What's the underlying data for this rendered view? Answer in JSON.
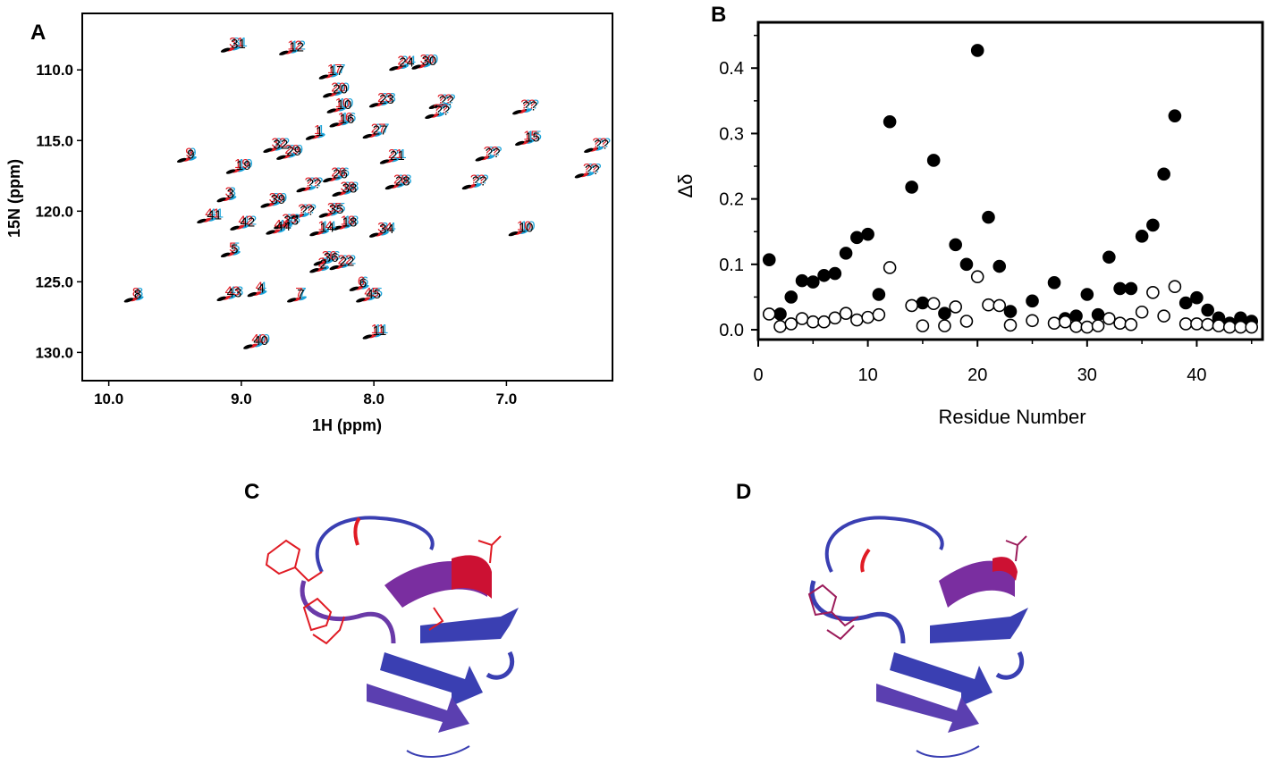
{
  "panels": {
    "A": "A",
    "B": "B",
    "C": "C",
    "D": "D"
  },
  "colors": {
    "free": "#000000",
    "cyan": "#1aa3d9",
    "red": "#e01b24",
    "helix_blue": "#3a3fb2",
    "helix_red": "#cc1133"
  },
  "chart_data": [
    {
      "type": "scatter",
      "panel": "A",
      "xlabel": "1H (ppm)",
      "ylabel": "15N (ppm)",
      "xlim": [
        10.2,
        6.2
      ],
      "ylim": [
        132,
        106
      ],
      "x_reversed": true,
      "y_reversed": true,
      "xticks": [
        "10.0",
        "9.0",
        "8.0",
        "7.0"
      ],
      "xtick_values": [
        10.0,
        9.0,
        8.0,
        7.0
      ],
      "yticks": [
        "110.0",
        "115.0",
        "120.0",
        "125.0",
        "130.0"
      ],
      "ytick_values": [
        110.0,
        115.0,
        120.0,
        125.0,
        130.0
      ],
      "peaks": [
        {
          "label": "31",
          "h": 9.12,
          "n": 108.6
        },
        {
          "label": "12",
          "h": 8.68,
          "n": 108.8
        },
        {
          "label": "24",
          "h": 7.85,
          "n": 109.9
        },
        {
          "label": "30",
          "h": 7.68,
          "n": 109.8
        },
        {
          "label": "17",
          "h": 8.38,
          "n": 110.5
        },
        {
          "label": "20",
          "h": 8.35,
          "n": 111.8
        },
        {
          "label": "23",
          "h": 8.0,
          "n": 112.5
        },
        {
          "label": "??",
          "h": 7.55,
          "n": 112.6
        },
        {
          "label": "??",
          "h": 6.92,
          "n": 113.0
        },
        {
          "label": "10",
          "h": 8.32,
          "n": 112.9
        },
        {
          "label": "16",
          "h": 8.3,
          "n": 113.9
        },
        {
          "label": "??",
          "h": 7.58,
          "n": 113.3
        },
        {
          "label": "1",
          "h": 8.48,
          "n": 114.8
        },
        {
          "label": "27",
          "h": 8.05,
          "n": 114.7
        },
        {
          "label": "15",
          "h": 6.9,
          "n": 115.2
        },
        {
          "label": "32",
          "h": 8.8,
          "n": 115.7
        },
        {
          "label": "29",
          "h": 8.7,
          "n": 116.2
        },
        {
          "label": "9",
          "h": 9.45,
          "n": 116.4
        },
        {
          "label": "21",
          "h": 7.92,
          "n": 116.5
        },
        {
          "label": "??",
          "h": 7.2,
          "n": 116.3
        },
        {
          "label": "??",
          "h": 6.38,
          "n": 115.7
        },
        {
          "label": "19",
          "h": 9.08,
          "n": 117.2
        },
        {
          "label": "??",
          "h": 6.45,
          "n": 117.5
        },
        {
          "label": "26",
          "h": 8.35,
          "n": 117.8
        },
        {
          "label": "28",
          "h": 7.88,
          "n": 118.3
        },
        {
          "label": "??",
          "h": 7.3,
          "n": 118.3
        },
        {
          "label": "??",
          "h": 8.55,
          "n": 118.5
        },
        {
          "label": "38",
          "h": 8.28,
          "n": 118.8
        },
        {
          "label": "3",
          "h": 9.15,
          "n": 119.2
        },
        {
          "label": "39",
          "h": 8.82,
          "n": 119.6
        },
        {
          "label": "41",
          "h": 9.3,
          "n": 120.7
        },
        {
          "label": "??",
          "h": 8.6,
          "n": 120.4
        },
        {
          "label": "35",
          "h": 8.38,
          "n": 120.3
        },
        {
          "label": "42",
          "h": 9.05,
          "n": 121.2
        },
        {
          "label": "33",
          "h": 8.72,
          "n": 121.1
        },
        {
          "label": "44",
          "h": 8.78,
          "n": 121.5
        },
        {
          "label": "18",
          "h": 8.28,
          "n": 121.2
        },
        {
          "label": "34",
          "h": 8.0,
          "n": 121.7
        },
        {
          "label": "14",
          "h": 8.45,
          "n": 121.6
        },
        {
          "label": "10",
          "h": 6.95,
          "n": 121.6
        },
        {
          "label": "5",
          "h": 9.12,
          "n": 123.1
        },
        {
          "label": "36",
          "h": 8.42,
          "n": 123.7
        },
        {
          "label": "22",
          "h": 8.3,
          "n": 124.0
        },
        {
          "label": "2",
          "h": 8.45,
          "n": 124.2
        },
        {
          "label": "6",
          "h": 8.15,
          "n": 125.5
        },
        {
          "label": "4",
          "h": 8.92,
          "n": 125.9
        },
        {
          "label": "43",
          "h": 9.15,
          "n": 126.2
        },
        {
          "label": "7",
          "h": 8.62,
          "n": 126.3
        },
        {
          "label": "45",
          "h": 8.1,
          "n": 126.3
        },
        {
          "label": "8",
          "h": 9.85,
          "n": 126.3
        },
        {
          "label": "11",
          "h": 8.05,
          "n": 128.9
        },
        {
          "label": "40",
          "h": 8.95,
          "n": 129.6
        }
      ]
    },
    {
      "type": "scatter",
      "panel": "B",
      "xlabel": "Residue Number",
      "ylabel": "Δδ",
      "xlim": [
        0,
        46
      ],
      "ylim": [
        -0.015,
        0.47
      ],
      "xticks": [
        "0",
        "10",
        "20",
        "30",
        "40"
      ],
      "xtick_values": [
        0,
        10,
        20,
        30,
        40
      ],
      "yticks": [
        "0.0",
        "0.1",
        "0.2",
        "0.3",
        "0.4"
      ],
      "ytick_values": [
        0.0,
        0.1,
        0.2,
        0.3,
        0.4
      ],
      "series": [
        {
          "marker": "filled",
          "points": [
            [
              1,
              0.107
            ],
            [
              2,
              0.024
            ],
            [
              3,
              0.05
            ],
            [
              4,
              0.075
            ],
            [
              5,
              0.073
            ],
            [
              6,
              0.083
            ],
            [
              7,
              0.086
            ],
            [
              8,
              0.117
            ],
            [
              9,
              0.141
            ],
            [
              10,
              0.146
            ],
            [
              11,
              0.054
            ],
            [
              12,
              0.318
            ],
            [
              14,
              0.218
            ],
            [
              15,
              0.041
            ],
            [
              16,
              0.259
            ],
            [
              17,
              0.025
            ],
            [
              18,
              0.13
            ],
            [
              19,
              0.1
            ],
            [
              20,
              0.427
            ],
            [
              21,
              0.172
            ],
            [
              22,
              0.097
            ],
            [
              23,
              0.028
            ],
            [
              25,
              0.044
            ],
            [
              27,
              0.072
            ],
            [
              28,
              0.017
            ],
            [
              29,
              0.021
            ],
            [
              30,
              0.054
            ],
            [
              31,
              0.023
            ],
            [
              32,
              0.111
            ],
            [
              33,
              0.063
            ],
            [
              34,
              0.063
            ],
            [
              35,
              0.143
            ],
            [
              36,
              0.16
            ],
            [
              37,
              0.238
            ],
            [
              38,
              0.327
            ],
            [
              39,
              0.041
            ],
            [
              40,
              0.049
            ],
            [
              41,
              0.03
            ],
            [
              42,
              0.018
            ],
            [
              43,
              0.01
            ],
            [
              44,
              0.018
            ],
            [
              45,
              0.013
            ]
          ]
        },
        {
          "marker": "open",
          "points": [
            [
              1,
              0.024
            ],
            [
              2,
              0.005
            ],
            [
              3,
              0.009
            ],
            [
              4,
              0.017
            ],
            [
              5,
              0.012
            ],
            [
              6,
              0.012
            ],
            [
              7,
              0.018
            ],
            [
              8,
              0.025
            ],
            [
              9,
              0.015
            ],
            [
              10,
              0.019
            ],
            [
              11,
              0.023
            ],
            [
              12,
              0.095
            ],
            [
              14,
              0.037
            ],
            [
              15,
              0.006
            ],
            [
              16,
              0.04
            ],
            [
              17,
              0.006
            ],
            [
              18,
              0.035
            ],
            [
              19,
              0.013
            ],
            [
              20,
              0.081
            ],
            [
              21,
              0.038
            ],
            [
              22,
              0.037
            ],
            [
              23,
              0.007
            ],
            [
              25,
              0.014
            ],
            [
              27,
              0.01
            ],
            [
              28,
              0.012
            ],
            [
              29,
              0.005
            ],
            [
              30,
              0.004
            ],
            [
              31,
              0.006
            ],
            [
              32,
              0.017
            ],
            [
              33,
              0.01
            ],
            [
              34,
              0.008
            ],
            [
              35,
              0.027
            ],
            [
              36,
              0.057
            ],
            [
              37,
              0.021
            ],
            [
              38,
              0.066
            ],
            [
              39,
              0.009
            ],
            [
              40,
              0.009
            ],
            [
              41,
              0.008
            ],
            [
              42,
              0.006
            ],
            [
              43,
              0.004
            ],
            [
              44,
              0.004
            ],
            [
              45,
              0.004
            ]
          ]
        }
      ]
    }
  ]
}
